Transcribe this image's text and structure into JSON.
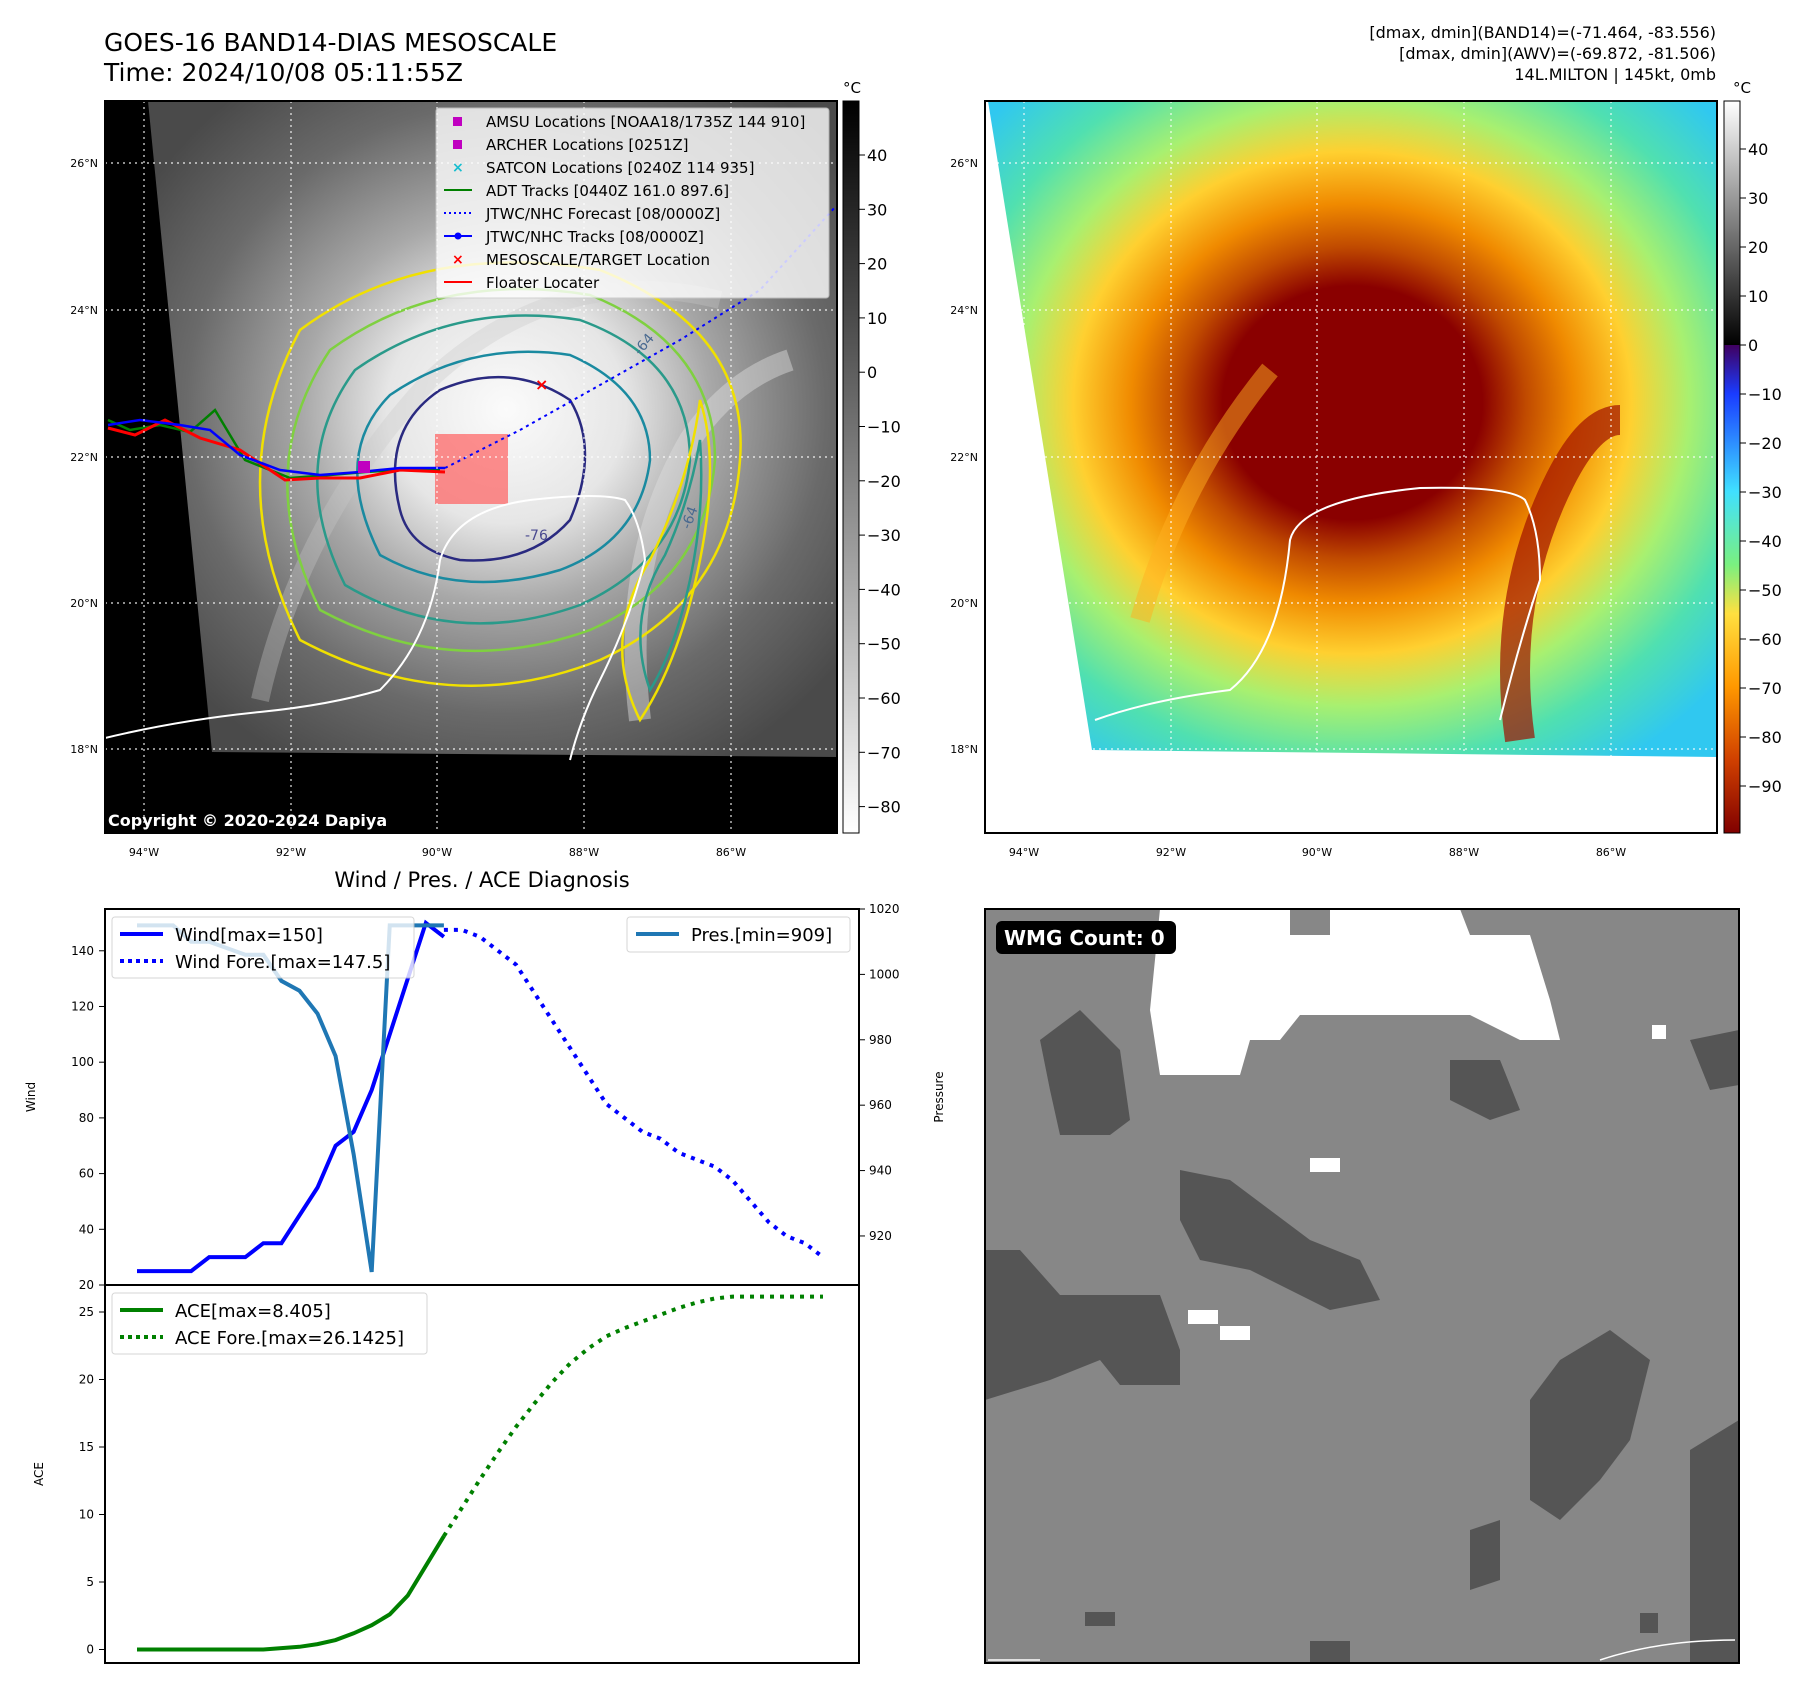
{
  "header": {
    "title": "GOES-16 BAND14-DIAS MESOSCALE",
    "time": "Time: 2024/10/08 05:11:55Z",
    "stats_line1": "[dmax, dmin](BAND14)=(-71.464, -83.556)",
    "stats_line2": "[dmax, dmin](AWV)=(-69.872, -81.506)",
    "stats_line3": "14L.MILTON | 145kt, 0mb"
  },
  "map": {
    "lat_labels": [
      "26°N",
      "24°N",
      "22°N",
      "20°N",
      "18°N"
    ],
    "lon_labels": [
      "94°W",
      "92°W",
      "90°W",
      "88°W",
      "86°W"
    ],
    "copyright": "Copyright © 2020-2024 Dapiya",
    "contour_labels": [
      "-76",
      "-64",
      "-64"
    ],
    "legend": [
      {
        "label": "AMSU Locations [NOAA18/1735Z 144 910]",
        "marker": "square",
        "color": "#c000c0"
      },
      {
        "label": "ARCHER Locations [0251Z]",
        "marker": "square",
        "color": "#c000c0"
      },
      {
        "label": "SATCON Locations [0240Z 114 935]",
        "marker": "x",
        "color": "#17becf"
      },
      {
        "label": "ADT Tracks [0440Z 161.0 897.6]",
        "marker": "line",
        "color": "#008000"
      },
      {
        "label": "JTWC/NHC Forecast [08/0000Z]",
        "marker": "dotted",
        "color": "#0000ff"
      },
      {
        "label": "JTWC/NHC Tracks [08/0000Z]",
        "marker": "line-dot",
        "color": "#0000ff"
      },
      {
        "label": "MESOSCALE/TARGET Location",
        "marker": "x",
        "color": "#ff0000"
      },
      {
        "label": "Floater Locater",
        "marker": "line",
        "color": "#ff0000"
      }
    ],
    "gray_colorbar": {
      "unit": "°C",
      "ticks": [
        "40",
        "30",
        "20",
        "10",
        "0",
        "−10",
        "−20",
        "−30",
        "−40",
        "−50",
        "−60",
        "−70",
        "−80"
      ]
    },
    "color_colorbar": {
      "unit": "°C",
      "ticks": [
        "40",
        "30",
        "20",
        "10",
        "0",
        "−10",
        "−20",
        "−30",
        "−40",
        "−50",
        "−60",
        "−70",
        "−80",
        "−90"
      ]
    }
  },
  "wmg": {
    "label": "WMG Count: 0"
  },
  "colors": {
    "wind": "#0000ff",
    "pressure": "#1f77b4",
    "ace": "#008000",
    "forecast": "#0000ff",
    "target": "#ff0000"
  },
  "chart_data": [
    {
      "type": "line",
      "title": "Wind / Pres. / ACE Diagnosis",
      "ylabel": "Wind",
      "ylim": [
        20,
        155
      ],
      "y_ticks": [
        "140",
        "120",
        "100",
        "80",
        "60",
        "40",
        "20"
      ],
      "x": [
        0,
        1,
        2,
        3,
        4,
        5,
        6,
        7,
        8,
        9,
        10,
        11,
        12,
        13,
        14,
        15,
        16,
        17,
        18,
        19,
        20,
        21,
        22,
        23,
        24,
        25,
        26,
        27,
        28,
        29,
        30,
        31,
        32,
        33,
        34,
        35,
        36,
        37,
        38
      ],
      "series": [
        {
          "name": "Wind[max=150]",
          "x": [
            0,
            1,
            2,
            3,
            4,
            5,
            6,
            7,
            8,
            9,
            10,
            11,
            12,
            13,
            14,
            15,
            16,
            17
          ],
          "values": [
            25,
            25,
            25,
            25,
            30,
            30,
            30,
            35,
            35,
            45,
            55,
            70,
            75,
            90,
            110,
            130,
            150,
            145
          ]
        },
        {
          "name": "Wind Fore.[max=147.5]",
          "x": [
            17,
            18,
            19,
            20,
            21,
            22,
            23,
            24,
            25,
            26,
            27,
            28,
            29,
            30,
            31,
            32,
            33,
            34,
            35,
            36,
            37,
            38
          ],
          "values": [
            147.5,
            147.5,
            145,
            140,
            135,
            125,
            115,
            105,
            95,
            85,
            80,
            75,
            72.5,
            67.5,
            65,
            62.5,
            57.5,
            50,
            42.5,
            37.5,
            35,
            30
          ]
        }
      ]
    },
    {
      "type": "line",
      "ylabel": "Pressure",
      "ylim": [
        905,
        1020
      ],
      "y_ticks": [
        "1020",
        "1000",
        "980",
        "960",
        "940",
        "920"
      ],
      "series": [
        {
          "name": "Pres.[min=909]",
          "x": [
            0,
            1,
            2,
            3,
            4,
            5,
            6,
            7,
            8,
            9,
            10,
            11,
            12,
            13,
            14,
            15,
            16,
            17
          ],
          "values": [
            1015,
            1015,
            1015,
            1010,
            1010,
            1008,
            1006,
            1006,
            998,
            995,
            988,
            975,
            945,
            909,
            1015,
            1015,
            1015,
            1015
          ]
        }
      ]
    },
    {
      "type": "line",
      "ylabel": "ACE",
      "ylim": [
        -1,
        27
      ],
      "y_ticks": [
        "25",
        "20",
        "15",
        "10",
        "5",
        "0"
      ],
      "series": [
        {
          "name": "ACE[max=8.405]",
          "x": [
            0,
            1,
            2,
            3,
            4,
            5,
            6,
            7,
            8,
            9,
            10,
            11,
            12,
            13,
            14,
            15,
            16,
            17
          ],
          "values": [
            0,
            0,
            0,
            0,
            0,
            0,
            0,
            0,
            0.1,
            0.2,
            0.4,
            0.7,
            1.2,
            1.8,
            2.6,
            4.0,
            6.2,
            8.405
          ]
        },
        {
          "name": "ACE Fore.[max=26.1425]",
          "x": [
            17,
            18,
            19,
            20,
            21,
            22,
            23,
            24,
            25,
            26,
            27,
            28,
            29,
            30,
            31,
            32,
            33,
            34,
            35,
            36,
            37,
            38
          ],
          "values": [
            8.405,
            10.5,
            12.6,
            14.6,
            16.5,
            18.2,
            19.8,
            21.2,
            22.3,
            23.2,
            23.8,
            24.3,
            24.8,
            25.3,
            25.7,
            26.0,
            26.14,
            26.14,
            26.14,
            26.14,
            26.14,
            26.14
          ]
        }
      ]
    }
  ]
}
